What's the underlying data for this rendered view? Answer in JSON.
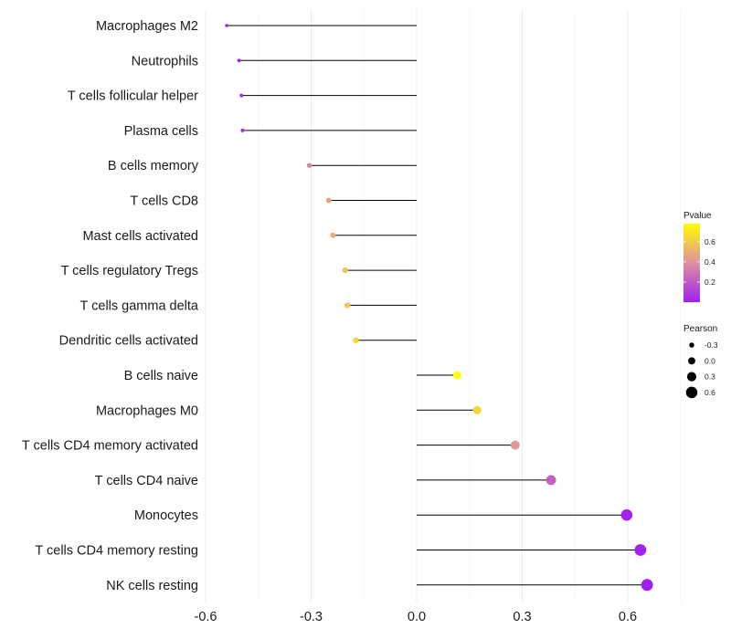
{
  "chart_data": {
    "type": "lollipop",
    "title": "",
    "xlabel": "",
    "ylabel": "",
    "xlim": [
      -0.67,
      0.76
    ],
    "x_ticks": [
      {
        "value": -0.6,
        "label": "-0.6"
      },
      {
        "value": -0.3,
        "label": "-0.3"
      },
      {
        "value": 0.0,
        "label": "0.0"
      },
      {
        "value": 0.3,
        "label": "0.3"
      },
      {
        "value": 0.6,
        "label": "0.6"
      }
    ],
    "grid": true,
    "points": [
      {
        "category": "Macrophages M2",
        "pearson": -0.54,
        "pvalue": 0.0
      },
      {
        "category": "Neutrophils",
        "pearson": -0.505,
        "pvalue": 0.02
      },
      {
        "category": "T cells follicular helper",
        "pearson": -0.498,
        "pvalue": 0.03
      },
      {
        "category": "Plasma cells",
        "pearson": -0.495,
        "pvalue": 0.03
      },
      {
        "category": "B cells memory",
        "pearson": -0.305,
        "pvalue": 0.36
      },
      {
        "category": "T cells CD8",
        "pearson": -0.25,
        "pvalue": 0.46
      },
      {
        "category": "Mast cells activated",
        "pearson": -0.238,
        "pvalue": 0.5
      },
      {
        "category": "T cells regulatory  Tregs",
        "pearson": -0.203,
        "pvalue": 0.57
      },
      {
        "category": "T cells gamma delta",
        "pearson": -0.197,
        "pvalue": 0.59
      },
      {
        "category": "Dendritic cells activated",
        "pearson": -0.173,
        "pvalue": 0.63
      },
      {
        "category": "B cells naive",
        "pearson": 0.115,
        "pvalue": 0.78
      },
      {
        "category": "Macrophages M0",
        "pearson": 0.172,
        "pvalue": 0.64
      },
      {
        "category": "T cells CD4 memory activated",
        "pearson": 0.28,
        "pvalue": 0.42
      },
      {
        "category": "T cells CD4 naive",
        "pearson": 0.382,
        "pvalue": 0.22
      },
      {
        "category": "Monocytes",
        "pearson": 0.597,
        "pvalue": 0.01
      },
      {
        "category": "T cells CD4 memory resting",
        "pearson": 0.636,
        "pvalue": 0.01
      },
      {
        "category": "NK cells resting",
        "pearson": 0.655,
        "pvalue": 0.0
      }
    ],
    "legend": {
      "placement": "right",
      "color": {
        "title": "Pvalue",
        "range": [
          0.0,
          0.78
        ],
        "low_color": "#a020f0",
        "mid_color": "#e08fa0",
        "high_color": "#ffff00",
        "ticks": [
          {
            "value": 0.2,
            "label": "0.2"
          },
          {
            "value": 0.4,
            "label": "0.4"
          },
          {
            "value": 0.6,
            "label": "0.6"
          }
        ]
      },
      "size": {
        "title": "Pearson",
        "range": [
          -0.54,
          0.655
        ],
        "entries": [
          {
            "value": -0.3,
            "label": "-0.3"
          },
          {
            "value": 0.0,
            "label": "0.0"
          },
          {
            "value": 0.3,
            "label": "0.3"
          },
          {
            "value": 0.6,
            "label": "0.6"
          }
        ]
      }
    }
  }
}
